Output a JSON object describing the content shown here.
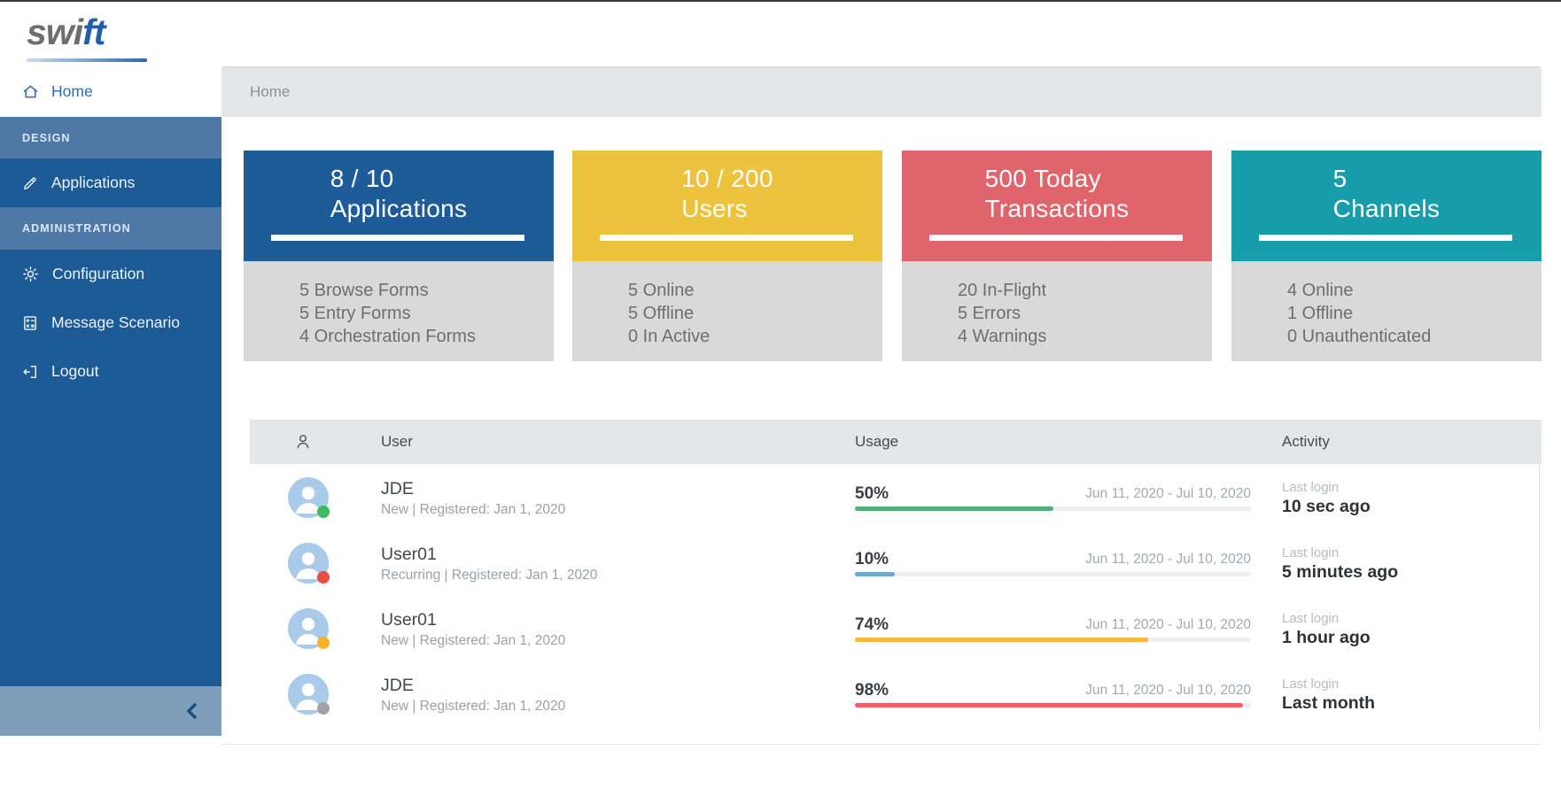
{
  "logo": {
    "part_gray": "swi",
    "part_blue": "ft"
  },
  "breadcrumb": {
    "label": "Home"
  },
  "sidebar": {
    "home_label": "Home",
    "design_header": "DESIGN",
    "applications_label": "Applications",
    "admin_header": "ADMINISTRATION",
    "configuration_label": "Configuration",
    "message_scenario_label": "Message Scenario",
    "logout_label": "Logout",
    "icons": [
      "home-icon",
      "pencil-icon",
      "gear-icon",
      "calculator-icon",
      "logout-icon",
      "chevron-left-icon"
    ],
    "colors": {
      "base": "#1d5b97",
      "section": "#4e79a6",
      "collapse": "#7f9ebc",
      "active_text": "#2e6db4"
    }
  },
  "cards": [
    {
      "title_line1": "8 / 10",
      "title_line2": "Applications",
      "color": "#1e5b99",
      "stats": [
        "5 Browse Forms",
        "5 Entry Forms",
        "4 Orchestration Forms"
      ]
    },
    {
      "title_line1": "10 / 200",
      "title_line2": "Users",
      "color": "#edc33d",
      "stats": [
        "5 Online",
        "5 Offline",
        "0 In Active"
      ]
    },
    {
      "title_line1": "500 Today",
      "title_line2": "Transactions",
      "color": "#e0646b",
      "stats": [
        "20 In-Flight",
        "5 Errors",
        "4 Warnings"
      ]
    },
    {
      "title_line1": "5",
      "title_line2": "Channels",
      "color": "#189daa",
      "stats": [
        "4 Online",
        "1 Offline",
        "0 Unauthenticated"
      ]
    }
  ],
  "table": {
    "columns": {
      "user": "User",
      "usage": "Usage",
      "activity": "Activity"
    },
    "header_icon": "user-icon",
    "rows": [
      {
        "name": "JDE",
        "meta": "New | Registered: Jan 1, 2020",
        "status_color": "#3fba5f",
        "pct_label": "50%",
        "pct": 50,
        "bar_color": "#4cb077",
        "date_range": "Jun 11, 2020 - Jul 10, 2020",
        "activity_label": "Last login",
        "activity_value": "10 sec ago"
      },
      {
        "name": "User01",
        "meta": "Recurring | Registered: Jan 1, 2020",
        "status_color": "#ea4b44",
        "pct_label": "10%",
        "pct": 10,
        "bar_color": "#6fa8d2",
        "date_range": "Jun 11, 2020 - Jul 10, 2020",
        "activity_label": "Last login",
        "activity_value": "5 minutes ago"
      },
      {
        "name": "User01",
        "meta": "New | Registered: Jan 1, 2020",
        "status_color": "#f6b32b",
        "pct_label": "74%",
        "pct": 74,
        "bar_color": "#f8b83a",
        "date_range": "Jun 11, 2020 - Jul 10, 2020",
        "activity_label": "Last login",
        "activity_value": "1 hour ago"
      },
      {
        "name": "JDE",
        "meta": "New | Registered: Jan 1, 2020",
        "status_color": "#9fa3a7",
        "pct_label": "98%",
        "pct": 98,
        "bar_color": "#f05f66",
        "date_range": "Jun 11, 2020 - Jul 10, 2020",
        "activity_label": "Last login",
        "activity_value": "Last month"
      }
    ]
  }
}
